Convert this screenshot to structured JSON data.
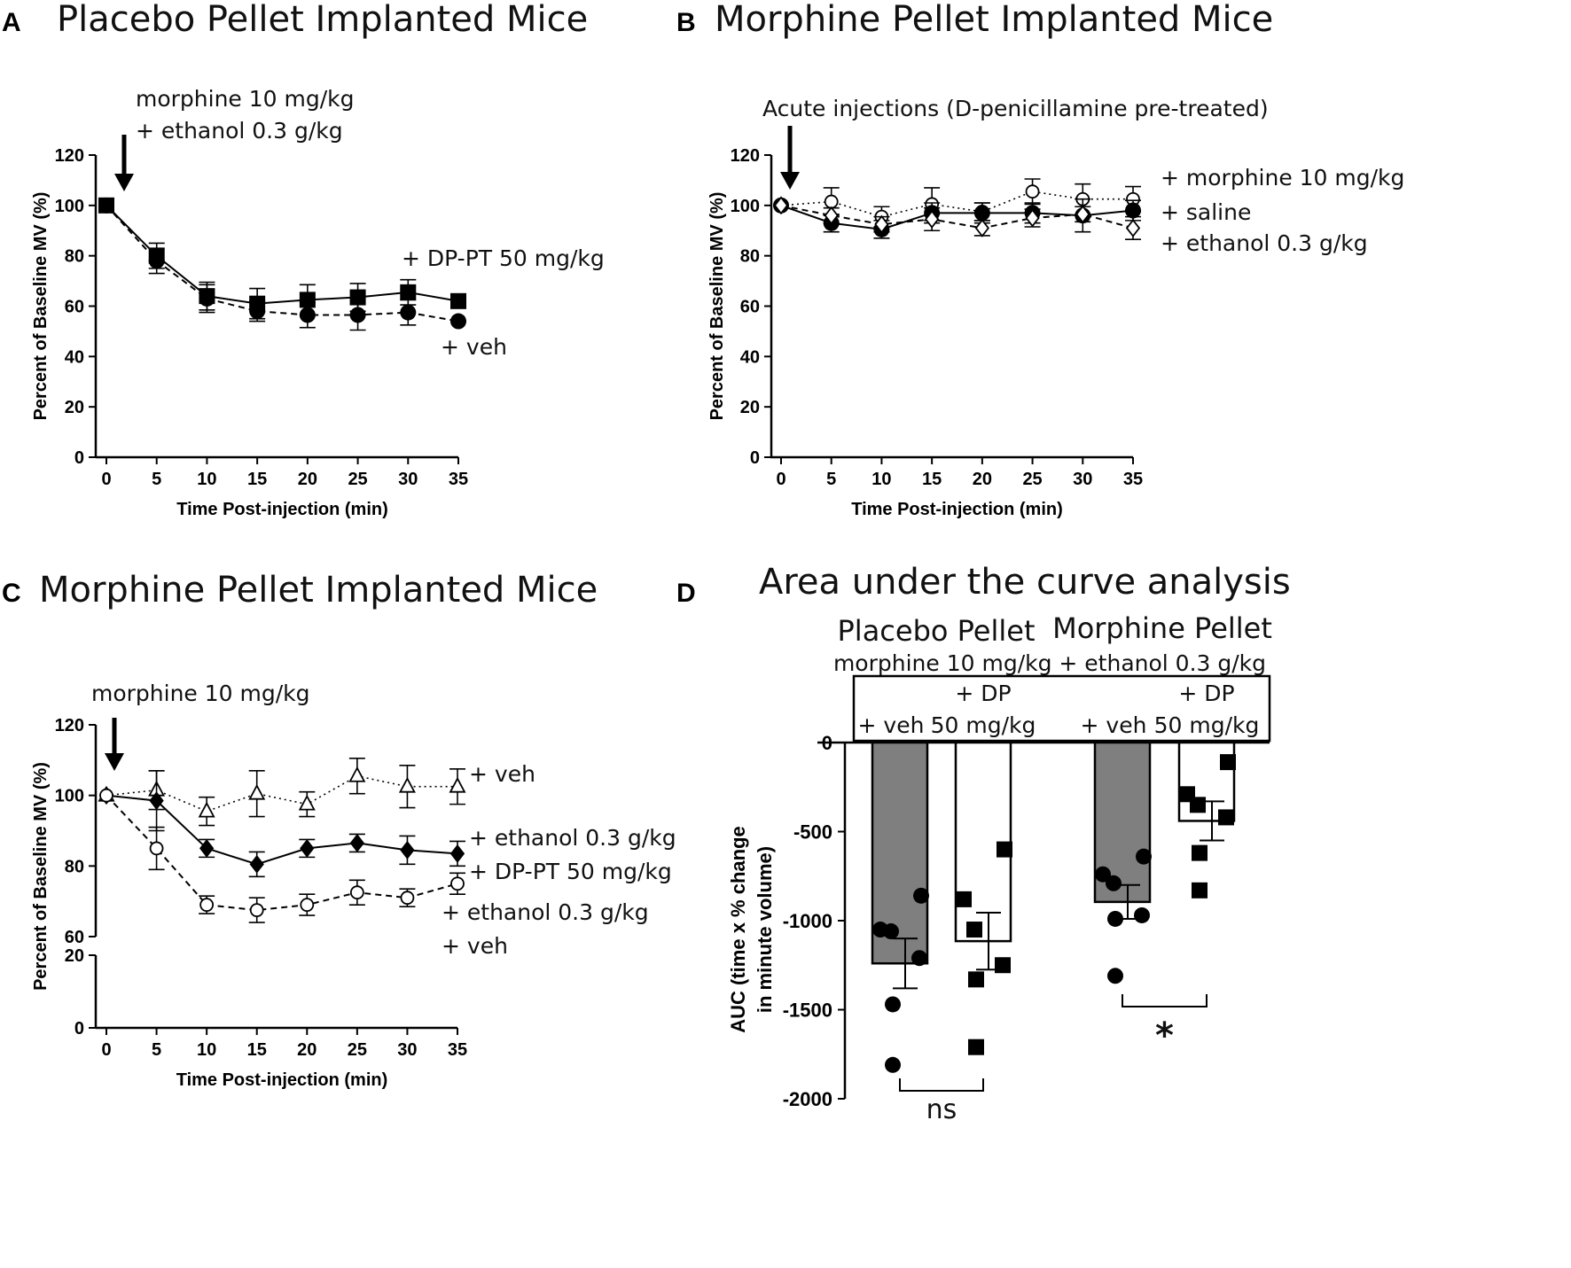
{
  "chart_data": [
    {
      "panel": "A",
      "type": "line",
      "title": "Placebo Pellet Implanted Mice",
      "xlabel": "Time Post-injection (min)",
      "ylabel": "Percent of Baseline MV (%)",
      "xlim": [
        0,
        35
      ],
      "ylim": [
        0,
        120
      ],
      "xticks": [
        "0",
        "5",
        "10",
        "15",
        "20",
        "25",
        "30",
        "35"
      ],
      "yticks": [
        "0",
        "20",
        "40",
        "60",
        "80",
        "100",
        "120"
      ],
      "arrow_label": [
        "morphine 10 mg/kg",
        "+ ethanol 0.3 g/kg"
      ],
      "x": [
        0,
        5,
        10,
        15,
        20,
        25,
        30,
        35
      ],
      "series": [
        {
          "name": "+ DP-PT 50 mg/kg",
          "marker": "square-filled",
          "line": "solid",
          "values": [
            100,
            80,
            64,
            61,
            62.5,
            63.5,
            65.5,
            62
          ],
          "errors": [
            0,
            5,
            5.5,
            6,
            6,
            5.5,
            5,
            0
          ]
        },
        {
          "name": "+ veh",
          "marker": "circle-filled",
          "line": "dashed",
          "values": [
            100,
            78,
            63,
            58,
            56.5,
            56.5,
            57.5,
            54
          ],
          "errors": [
            0,
            5,
            5.5,
            4,
            5,
            6,
            5,
            0
          ]
        }
      ]
    },
    {
      "panel": "B",
      "type": "line",
      "title": "Morphine Pellet Implanted Mice",
      "xlabel": "Time Post-injection (min)",
      "ylabel": "Percent of Baseline MV (%)",
      "xlim": [
        0,
        35
      ],
      "ylim": [
        0,
        120
      ],
      "xticks": [
        "0",
        "5",
        "10",
        "15",
        "20",
        "25",
        "30",
        "35"
      ],
      "yticks": [
        "0",
        "20",
        "40",
        "60",
        "80",
        "100",
        "120"
      ],
      "arrow_label": [
        "Acute injections (D-penicillamine pre-treated)"
      ],
      "x": [
        0,
        5,
        10,
        15,
        20,
        25,
        30,
        35
      ],
      "series": [
        {
          "name": "+ morphine 10 mg/kg",
          "marker": "circle-open",
          "line": "dotted",
          "values": [
            100,
            101.5,
            95.5,
            100.5,
            97.5,
            105.5,
            102.5,
            102.5
          ],
          "errors": [
            0,
            5.5,
            4,
            6.5,
            3.5,
            5,
            6,
            5
          ]
        },
        {
          "name": "+ saline",
          "marker": "circle-filled",
          "line": "solid",
          "values": [
            100,
            93,
            90.5,
            97,
            97,
            97,
            96,
            98
          ],
          "errors": [
            0,
            3.5,
            3.5,
            4,
            4,
            4,
            6.5,
            4
          ]
        },
        {
          "name": "+ ethanol 0.3 g/kg",
          "marker": "diamond-open",
          "line": "dashed",
          "values": [
            100,
            96,
            92.5,
            94.5,
            91,
            95,
            96.5,
            91
          ],
          "errors": [
            0,
            3,
            3,
            4.5,
            3,
            3.5,
            3,
            4.5
          ]
        }
      ]
    },
    {
      "panel": "C",
      "type": "line",
      "title": "Morphine Pellet Implanted Mice",
      "xlabel": "Time Post-injection (min)",
      "ylabel": "Percent of Baseline MV (%)",
      "xlim": [
        0,
        35
      ],
      "ylim": [
        0,
        120
      ],
      "axis_break": [
        20,
        60
      ],
      "xticks": [
        "0",
        "5",
        "10",
        "15",
        "20",
        "25",
        "30",
        "35"
      ],
      "yticks": [
        "0",
        "20",
        "60",
        "80",
        "100",
        "120"
      ],
      "arrow_label": [
        "morphine 10 mg/kg"
      ],
      "x": [
        0,
        5,
        10,
        15,
        20,
        25,
        30,
        35
      ],
      "series": [
        {
          "name": "+ veh",
          "marker": "triangle-open",
          "line": "dotted",
          "values": [
            100,
            101.5,
            95.5,
            100.5,
            97.5,
            105.5,
            102.5,
            102.5
          ],
          "errors": [
            0,
            5.5,
            4,
            6.5,
            3.5,
            5,
            6,
            5
          ]
        },
        {
          "name": "+ ethanol 0.3 g/kg + DP-PT 50 mg/kg",
          "label_lines": [
            "+ ethanol 0.3 g/kg",
            "+ DP-PT 50 mg/kg"
          ],
          "marker": "diamond-filled",
          "line": "solid",
          "values": [
            100,
            98.5,
            85,
            80.5,
            85,
            86.5,
            84.5,
            83.5
          ],
          "errors": [
            0,
            8.5,
            2.5,
            3.5,
            2.5,
            2.5,
            4,
            3.5
          ]
        },
        {
          "name": "+ ethanol 0.3 g/kg + veh",
          "label_lines": [
            "+ ethanol 0.3 g/kg",
            "+ veh"
          ],
          "marker": "circle-open",
          "line": "dashed",
          "values": [
            100,
            85,
            69,
            67.5,
            69,
            72.5,
            71,
            75
          ],
          "errors": [
            0,
            6,
            2.5,
            3.5,
            3,
            3.5,
            2.5,
            3
          ]
        }
      ]
    },
    {
      "panel": "D",
      "type": "bar",
      "title": "Area under the curve  analysis",
      "ylabel_lines": [
        "AUC (time x % change",
        "in minute volume)"
      ],
      "ylim": [
        -2000,
        0
      ],
      "yticks": [
        "0",
        "-500",
        "-1000",
        "-1500",
        "-2000"
      ],
      "group_headers": [
        "Placebo Pellet",
        "Morphine Pellet"
      ],
      "treatment_line": "morphine 10 mg/kg + ethanol 0.3 g/kg",
      "categories": [
        {
          "group": "Placebo Pellet",
          "label": [
            "+ veh"
          ],
          "fill": "#7f7f7f",
          "marker": "circle",
          "mean": -1240,
          "sem": 140,
          "points": [
            -860,
            -1050,
            -1060,
            -1210,
            -1470,
            -1810
          ]
        },
        {
          "group": "Placebo Pellet",
          "label": [
            "+ DP",
            "50 mg/kg"
          ],
          "fill": "#ffffff",
          "marker": "square",
          "mean": -1115,
          "sem": 160,
          "points": [
            -600,
            -880,
            -1050,
            -1250,
            -1330,
            -1710
          ]
        },
        {
          "group": "Morphine Pellet",
          "label": [
            "+ veh"
          ],
          "fill": "#7f7f7f",
          "marker": "circle",
          "mean": -895,
          "sem": 95,
          "points": [
            -640,
            -740,
            -790,
            -970,
            -990,
            -1310
          ]
        },
        {
          "group": "Morphine Pellet",
          "label": [
            "+ DP",
            "50 mg/kg"
          ],
          "fill": "#ffffff",
          "marker": "square",
          "mean": -440,
          "sem": 110,
          "points": [
            -110,
            -290,
            -350,
            -420,
            -620,
            -830
          ]
        }
      ],
      "comparisons": [
        {
          "between": [
            0,
            1
          ],
          "label": "ns"
        },
        {
          "between": [
            2,
            3
          ],
          "label": "*"
        }
      ]
    }
  ]
}
